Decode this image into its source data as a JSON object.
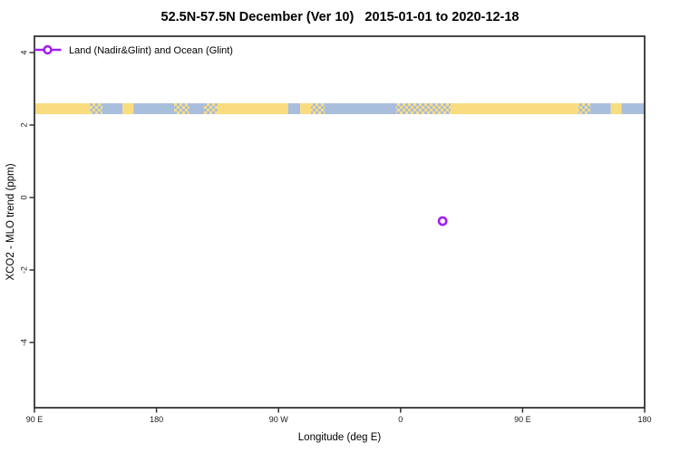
{
  "title": "52.5N-57.5N December (Ver 10)   2015-01-01 to 2020-12-18",
  "legend": {
    "label": "Land (Nadir&Glint) and Ocean (Glint)",
    "marker": "open-circle-on-line",
    "color": "#A020F0"
  },
  "axes": {
    "x": {
      "label": "Longitude (deg E)",
      "ticks": [
        "90 E",
        "180",
        "90 W",
        "0",
        "90 E",
        "180"
      ]
    },
    "y": {
      "label": "XCO2 - MLO trend (ppm)",
      "ticks": [
        "4",
        "2",
        "0",
        "-2",
        "-4"
      ]
    }
  },
  "colors": {
    "land": "#FADC80",
    "ocean": "#A9BEDC",
    "marker": "#A020F0",
    "axis": "#333333"
  },
  "chart_data": {
    "type": "scatter",
    "title": "52.5N-57.5N December (Ver 10)   2015-01-01 to 2020-12-18",
    "xlabel": "Longitude (deg E)",
    "ylabel": "XCO2 - MLO trend (ppm)",
    "x_axis_start_lon_deg_e": 90,
    "x_axis_span_deg": 450,
    "x_tick_positions_deg_from_start": [
      0,
      90,
      180,
      270,
      360,
      450
    ],
    "x_tick_labels": [
      "90 E",
      "180",
      "90 W",
      "0",
      "90 E",
      "180"
    ],
    "ylim": [
      -5.8,
      4.45
    ],
    "y_ticks": [
      4,
      2,
      0,
      -2,
      -4
    ],
    "grid": false,
    "legend_position": "top-left",
    "series": [
      {
        "name": "Land (Nadir&Glint) and Ocean (Glint)",
        "marker": "open-circle",
        "color": "#A020F0",
        "points": [
          {
            "lon_deg_e": 31,
            "xco2_minus_mlo_trend_ppm": -0.65
          }
        ]
      }
    ],
    "map_band": {
      "description": "world land/ocean strip for latitude band 52.5N-57.5N drawn across the plot",
      "y_from_ppm": 2.3,
      "y_to_ppm": 2.6,
      "land_color": "#FADC80",
      "ocean_color": "#A9BEDC",
      "segments_deg_from_90E": [
        {
          "from": 0,
          "to": 41,
          "type": "land",
          "region": "Siberia"
        },
        {
          "from": 41,
          "to": 50,
          "type": "mixed",
          "region": "Okhotsk coast"
        },
        {
          "from": 50,
          "to": 65,
          "type": "ocean",
          "region": "Sea of Okhotsk"
        },
        {
          "from": 65,
          "to": 73,
          "type": "land",
          "region": "Kamchatka"
        },
        {
          "from": 73,
          "to": 103,
          "type": "ocean",
          "region": "Bering Sea"
        },
        {
          "from": 103,
          "to": 114,
          "type": "mixed",
          "region": "Aleutians"
        },
        {
          "from": 114,
          "to": 125,
          "type": "ocean",
          "region": "Gulf of Alaska"
        },
        {
          "from": 125,
          "to": 135,
          "type": "mixed",
          "region": "Alaska coast"
        },
        {
          "from": 135,
          "to": 187,
          "type": "land",
          "region": "Alaska-Canada"
        },
        {
          "from": 187,
          "to": 196,
          "type": "ocean",
          "region": "Hudson Bay"
        },
        {
          "from": 196,
          "to": 204,
          "type": "land",
          "region": "eastern Canada"
        },
        {
          "from": 204,
          "to": 214,
          "type": "mixed",
          "region": "Labrador coast"
        },
        {
          "from": 214,
          "to": 267,
          "type": "ocean",
          "region": "North Atlantic"
        },
        {
          "from": 267,
          "to": 307,
          "type": "mixed",
          "region": "UK-North Sea-Baltic"
        },
        {
          "from": 307,
          "to": 401,
          "type": "land",
          "region": "Europe-Russia"
        },
        {
          "from": 401,
          "to": 410,
          "type": "mixed",
          "region": "Okhotsk coast (repeat)"
        },
        {
          "from": 410,
          "to": 425,
          "type": "ocean",
          "region": "Sea of Okhotsk (repeat)"
        },
        {
          "from": 425,
          "to": 433,
          "type": "land",
          "region": "Kamchatka (repeat)"
        },
        {
          "from": 433,
          "to": 450,
          "type": "ocean",
          "region": "Pacific (repeat)"
        }
      ]
    }
  }
}
